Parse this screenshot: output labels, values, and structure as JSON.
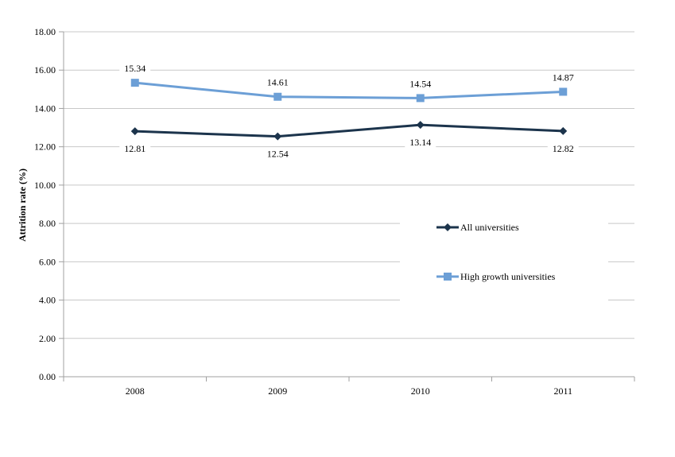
{
  "chart_data": {
    "type": "line",
    "categories": [
      "2008",
      "2009",
      "2010",
      "2011"
    ],
    "series": [
      {
        "name": "All universities",
        "values": [
          12.81,
          12.54,
          13.14,
          12.82
        ],
        "color": "#1c344c",
        "marker": "diamond"
      },
      {
        "name": "High growth universities",
        "values": [
          15.34,
          14.61,
          14.54,
          14.87
        ],
        "color": "#6c9fd6",
        "marker": "square"
      }
    ],
    "data_labels": {
      "All universities": [
        "12.81",
        "12.54",
        "13.14",
        "12.82"
      ],
      "High growth universities": [
        "15.34",
        "14.61",
        "14.54",
        "14.87"
      ]
    },
    "ylabel": "Attrition rate (%)",
    "xlabel": "",
    "title": "",
    "ylim": [
      0,
      18
    ],
    "yticks": [
      "0.00",
      "2.00",
      "4.00",
      "6.00",
      "8.00",
      "10.00",
      "12.00",
      "14.00",
      "16.00",
      "18.00"
    ],
    "grid": true,
    "legend_position": "right-center"
  }
}
